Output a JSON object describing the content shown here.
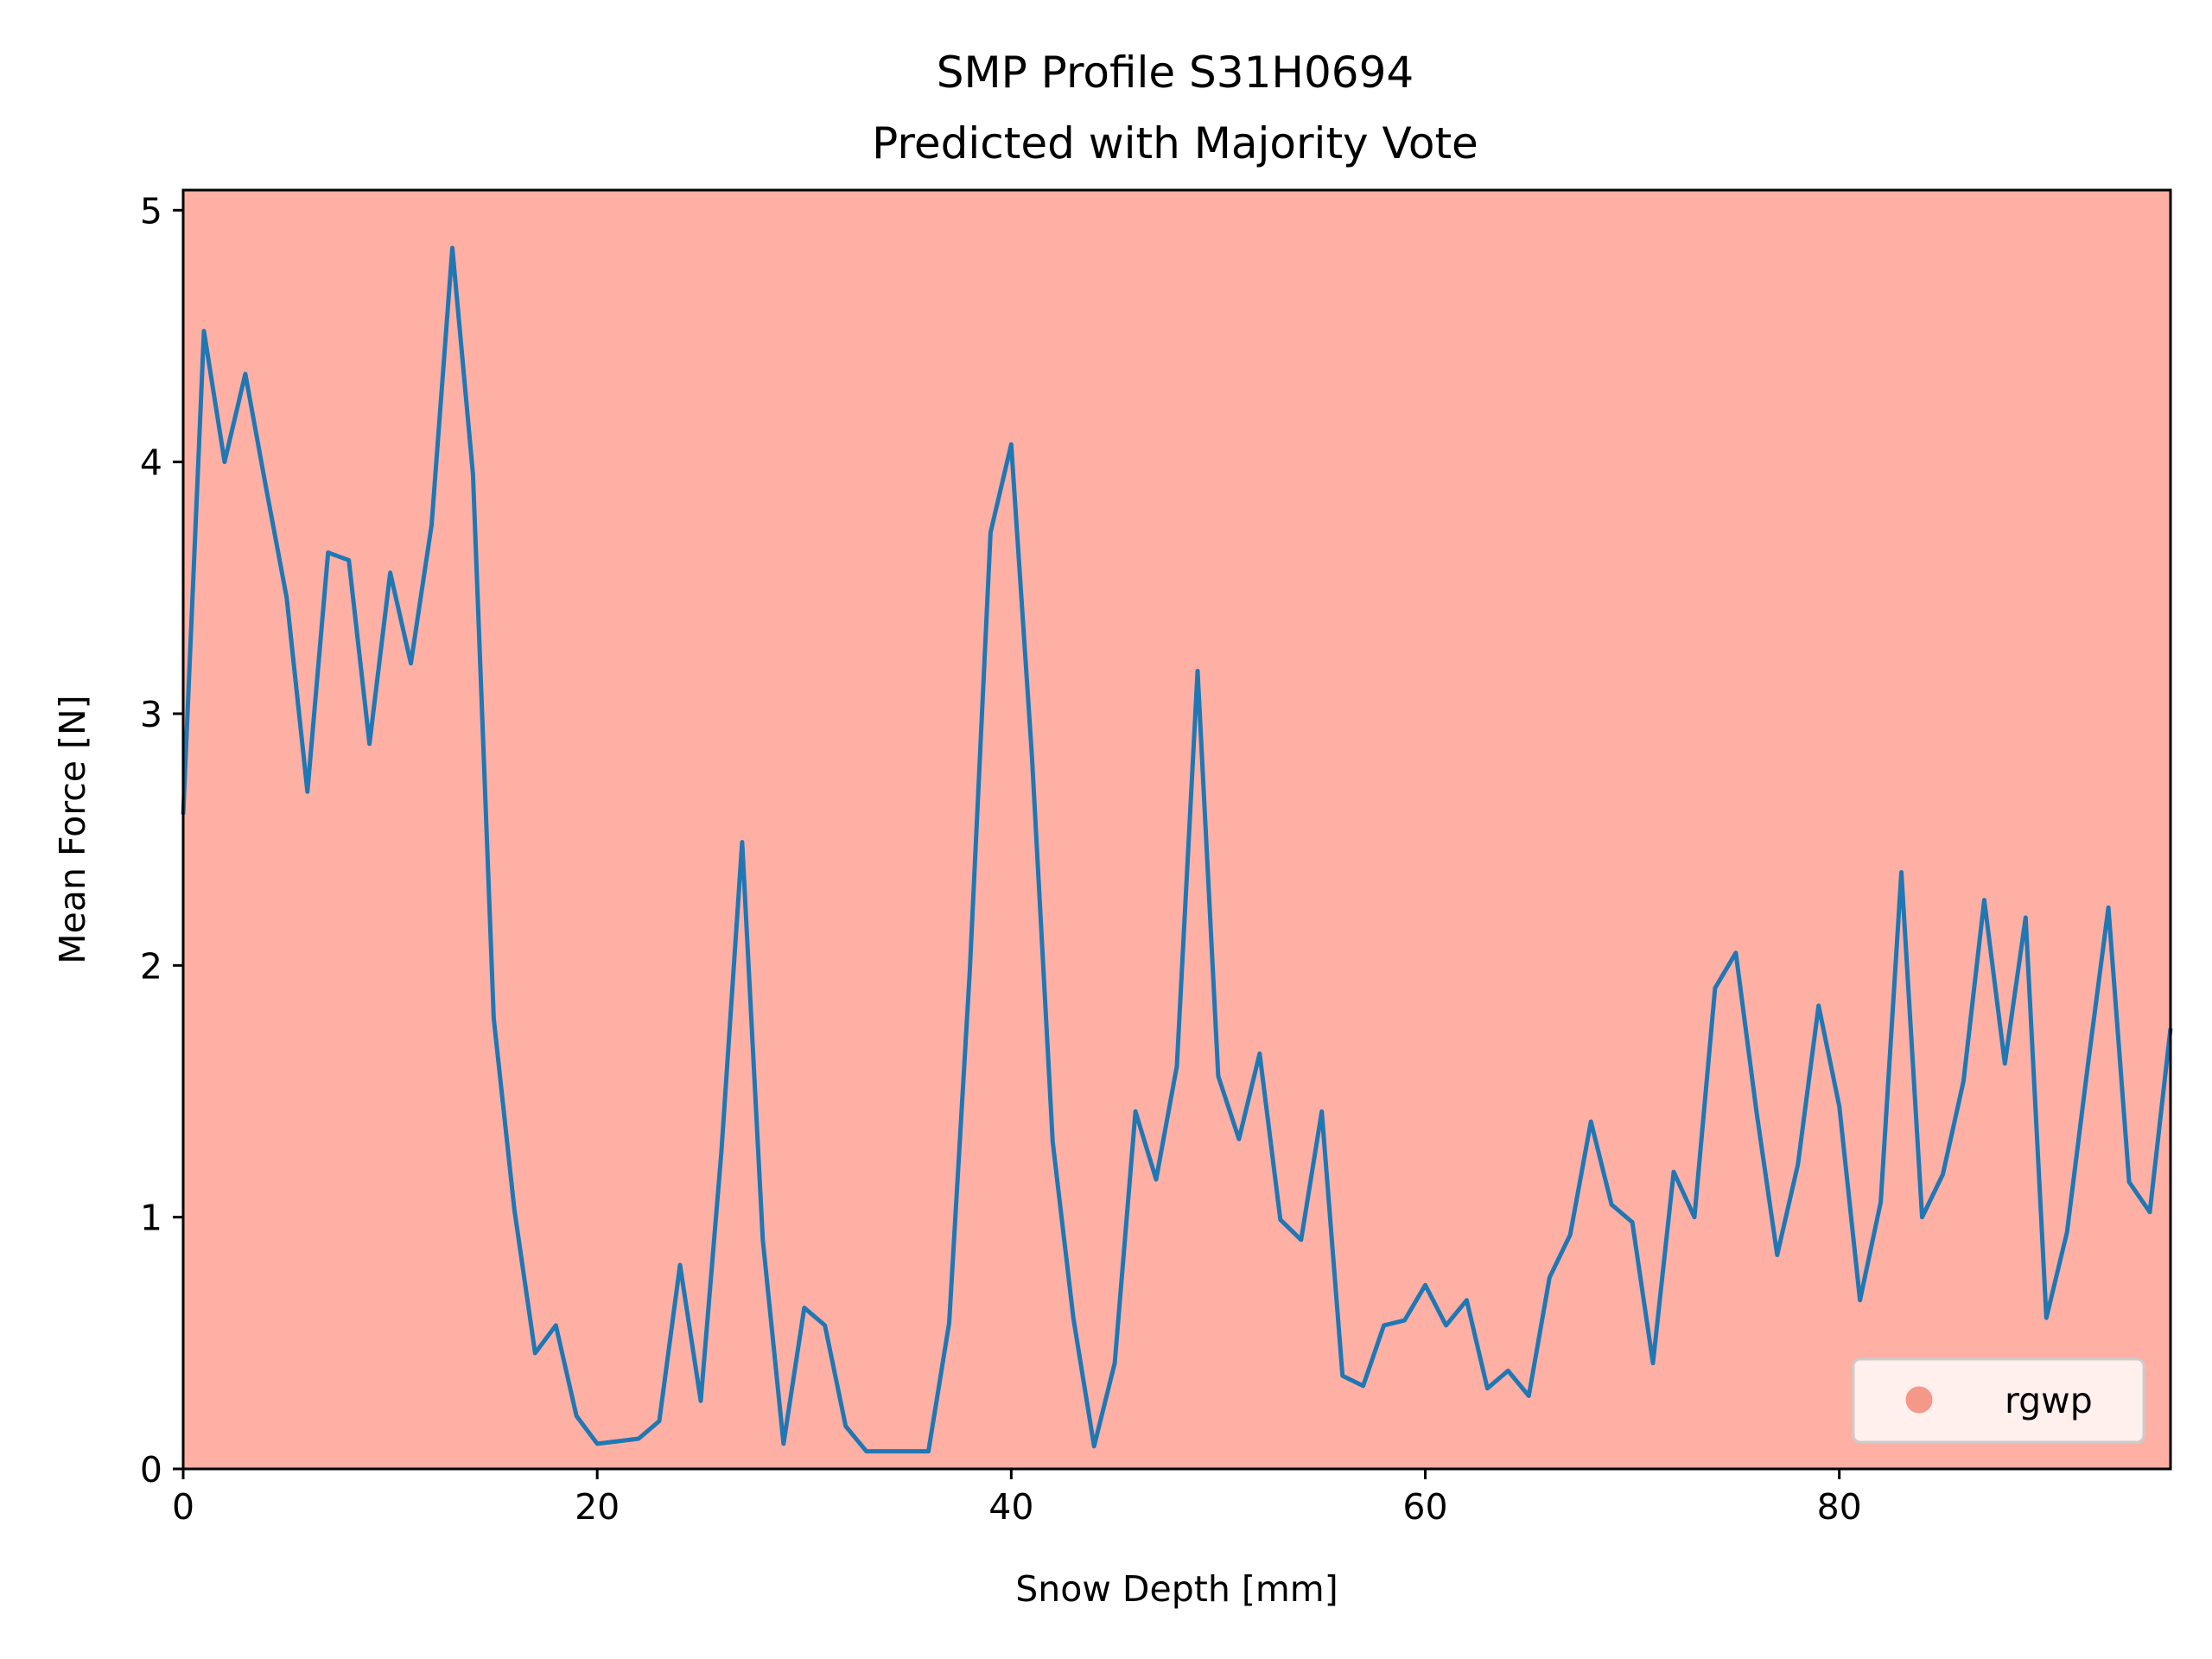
{
  "chart_data": {
    "type": "line",
    "title": "SMP Profile S31H0694",
    "subtitle": "Predicted with Majority Vote",
    "xlabel": "Snow Depth [mm]",
    "ylabel": "Mean Force [N]",
    "xlim": [
      0,
      96
    ],
    "ylim": [
      0,
      5.08
    ],
    "xticks": [
      0,
      20,
      40,
      60,
      80
    ],
    "yticks": [
      0,
      1,
      2,
      3,
      4,
      5
    ],
    "grid": false,
    "background_color": "#ffb0a5",
    "line_color": "#1f77b4",
    "legend": {
      "placement": "lower-right",
      "entries": [
        {
          "label": "rgwp",
          "marker": "circle",
          "color": "#f4998a"
        }
      ]
    },
    "series": [
      {
        "x": [
          0,
          1,
          2,
          3,
          4,
          5,
          6,
          7,
          8,
          9,
          10,
          11,
          12,
          13,
          14,
          15,
          16,
          17,
          18,
          19,
          20,
          21,
          22,
          23,
          24,
          25,
          26,
          27,
          28,
          29,
          30,
          31,
          32,
          33,
          34,
          35,
          36,
          37,
          38,
          39,
          40,
          41,
          42,
          43,
          44,
          45,
          46,
          47,
          48,
          49,
          50,
          51,
          52,
          53,
          54,
          55,
          56,
          57,
          58,
          59,
          60,
          61,
          62,
          63,
          64,
          65,
          66,
          67,
          68,
          69,
          70,
          71,
          72,
          73,
          74,
          75,
          76,
          77,
          78,
          79,
          80,
          81,
          82,
          83,
          84,
          85,
          86,
          87,
          88,
          89,
          90,
          91,
          92,
          93,
          94,
          95,
          96
        ],
        "values": [
          2.6,
          4.52,
          4.0,
          4.35,
          3.9,
          3.46,
          2.69,
          3.64,
          3.61,
          2.88,
          3.56,
          3.2,
          3.75,
          4.85,
          3.95,
          1.79,
          1.03,
          0.46,
          0.57,
          0.21,
          0.1,
          0.11,
          0.12,
          0.19,
          0.81,
          0.27,
          1.26,
          2.49,
          0.91,
          0.1,
          0.64,
          0.57,
          0.17,
          0.07,
          0.07,
          0.07,
          0.07,
          0.58,
          1.98,
          3.72,
          4.07,
          2.83,
          1.3,
          0.6,
          0.09,
          0.42,
          1.42,
          1.15,
          1.6,
          3.17,
          1.56,
          1.31,
          1.65,
          0.99,
          0.91,
          1.42,
          0.37,
          0.33,
          0.57,
          0.59,
          0.73,
          0.57,
          0.67,
          0.32,
          0.39,
          0.29,
          0.76,
          0.93,
          1.38,
          1.05,
          0.98,
          0.42,
          1.18,
          1.0,
          1.91,
          2.05,
          1.42,
          0.85,
          1.21,
          1.84,
          1.44,
          0.67,
          1.06,
          2.37,
          1.0,
          1.17,
          1.54,
          2.26,
          1.61,
          2.19,
          0.6,
          0.94,
          1.6,
          2.23,
          1.14,
          1.02,
          1.75
        ]
      }
    ]
  }
}
